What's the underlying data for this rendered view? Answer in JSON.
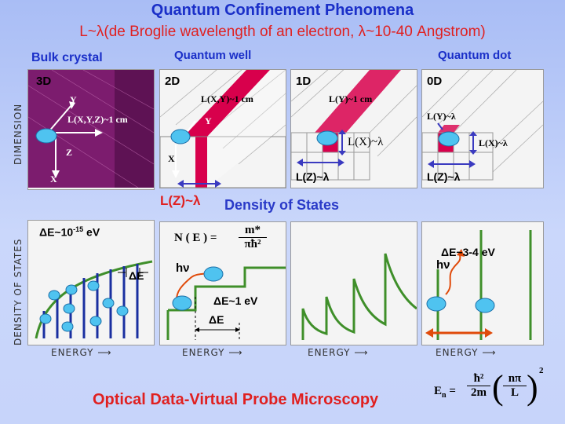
{
  "header": {
    "title": "Quantum Confinement Phenomena",
    "subtitle": "L~λ(de Broglie wavelength of an electron, λ~10-40 Angstrom)"
  },
  "columns": {
    "bulk": {
      "heading": "Bulk crystal",
      "dim": "3D",
      "size_label": "L(X,Y,Z)~1 cm",
      "axis_y": "Y",
      "axis_z": "Z",
      "axis_x": "X",
      "de": "ΔE~10",
      "de_exp": "-15",
      "de_unit": " eV",
      "delta_e": "ΔE"
    },
    "well": {
      "heading": "Quantum well",
      "dim": "2D",
      "size_label": "L(X,Y)~1 cm",
      "axis_y": "Y",
      "axis_x": "X",
      "lz": "L(Z)~λ",
      "dos_formula_lhs": "N ( E ) =",
      "dos_formula_num": "m*",
      "dos_formula_den": "πħ²",
      "hv": "hν",
      "de": "ΔE~1 eV",
      "delta_e": "ΔE"
    },
    "wire": {
      "heading": "",
      "dim": "1D",
      "size_label": "L(Y)~1 cm",
      "lx": "L(X)~λ",
      "lz": "L(Z)~λ"
    },
    "dot": {
      "heading": "Quantum dot",
      "dim": "0D",
      "ly": "L(Y)~λ",
      "lx": "L(X)~λ",
      "lz": "L(Z)~λ",
      "de": "ΔE~3-4 eV",
      "hv": "hν"
    }
  },
  "axes": {
    "dimension": "DIMENSION",
    "dos": "DENSITY OF STATES",
    "energy": "ENERGY"
  },
  "dos_title": "Density of States",
  "footer": "Optical Data-Virtual Probe Microscopy",
  "energy_formula": {
    "lhs": "E",
    "sub": "n",
    "num": "ħ²",
    "den": "2m",
    "par_num": "nπ",
    "par_den": "L",
    "exp": "2"
  },
  "colors": {
    "title": "#1a2fc8",
    "subtitle": "#e02020",
    "crystal": "#7c1c6e",
    "band": "#d8004c",
    "curve": "#3f8f2a",
    "arrow": "#3a3ac0"
  }
}
